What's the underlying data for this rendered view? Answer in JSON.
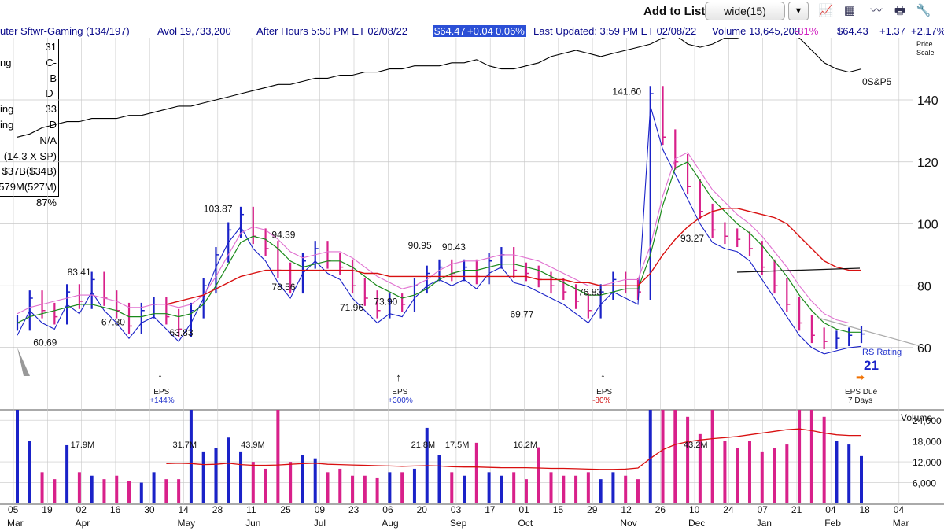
{
  "toolbar": {
    "add_to_list_label": "Add to List:",
    "list_value": "wide(15)",
    "icons": [
      "line-chart-icon",
      "table-icon",
      "alert-icon",
      "print-icon",
      "tools-icon"
    ]
  },
  "infobar": {
    "name": "uter Sftwr-Gaming (134/197)",
    "avol": "Avol 19,733,200",
    "after_hours": "After Hours 5:50 PM ET 02/08/22",
    "ah_price": "$64.47",
    "ah_change": "+0.04",
    "ah_pct": "0.06%",
    "last_updated": "Last Updated: 3:59 PM ET 02/08/22",
    "volume": "Volume 13,645,200",
    "vol_pct": "-31%",
    "price": "$64.43",
    "change": "+1.37",
    "change_pct": "+2.17%"
  },
  "stats": [
    {
      "label": "",
      "value": "31"
    },
    {
      "label": "ng",
      "value": "C-"
    },
    {
      "label": "",
      "value": "B"
    },
    {
      "label": "",
      "value": "D-"
    },
    {
      "label": "ing",
      "value": "33"
    },
    {
      "label": "ing",
      "value": "D"
    },
    {
      "label": "",
      "value": "N/A"
    },
    {
      "label": "",
      "value": "(14.3 X SP)"
    },
    {
      "label": "",
      "value": "$37B($34B)"
    },
    {
      "label": "",
      "value": "579M(527M)"
    },
    {
      "label": "",
      "value": "87%"
    }
  ],
  "chart_data": {
    "type": "line",
    "price_axis": {
      "label": "Price Scale",
      "ticks": [
        60,
        80,
        100,
        120,
        140
      ],
      "range": [
        50,
        160
      ]
    },
    "volume_axis": {
      "label": "Volume",
      "ticks": [
        "6,000",
        "12,000",
        "18,000",
        "24,000"
      ],
      "range": [
        0,
        27000
      ]
    },
    "weeks": [
      "Mar 05",
      "Mar 19",
      "Apr 02",
      "Apr 16",
      "Apr 30",
      "May 14",
      "May 28",
      "Jun 11",
      "Jun 25",
      "Jul 09",
      "Jul 23",
      "Aug 06",
      "Aug 20",
      "Sep 03",
      "Sep 17",
      "Oct 01",
      "Oct 15",
      "Oct 29",
      "Nov 12",
      "Nov 26",
      "Dec 10",
      "Dec 24",
      "Jan 07",
      "Jan 21",
      "Feb 04",
      "Feb 18",
      "Mar 04"
    ],
    "date_labels": [
      {
        "day": "05",
        "month": "Mar"
      },
      {
        "day": "19",
        "month": ""
      },
      {
        "day": "02",
        "month": "Apr"
      },
      {
        "day": "16",
        "month": ""
      },
      {
        "day": "30",
        "month": ""
      },
      {
        "day": "14",
        "month": "May"
      },
      {
        "day": "28",
        "month": ""
      },
      {
        "day": "11",
        "month": "Jun"
      },
      {
        "day": "25",
        "month": ""
      },
      {
        "day": "09",
        "month": "Jul"
      },
      {
        "day": "23",
        "month": ""
      },
      {
        "day": "06",
        "month": "Aug"
      },
      {
        "day": "20",
        "month": ""
      },
      {
        "day": "03",
        "month": "Sep"
      },
      {
        "day": "17",
        "month": ""
      },
      {
        "day": "01",
        "month": "Oct"
      },
      {
        "day": "15",
        "month": ""
      },
      {
        "day": "29",
        "month": ""
      },
      {
        "day": "12",
        "month": "Nov"
      },
      {
        "day": "26",
        "month": ""
      },
      {
        "day": "10",
        "month": "Dec"
      },
      {
        "day": "24",
        "month": ""
      },
      {
        "day": "07",
        "month": "Jan"
      },
      {
        "day": "21",
        "month": ""
      },
      {
        "day": "04",
        "month": "Feb"
      },
      {
        "day": "18",
        "month": ""
      },
      {
        "day": "04",
        "month": "Mar"
      }
    ],
    "price_close": [
      68,
      76,
      72,
      70,
      78,
      75,
      82,
      76,
      72,
      67,
      72,
      74,
      70,
      66,
      72,
      80,
      90,
      98,
      103,
      96,
      92,
      85,
      80,
      88,
      92,
      88,
      86,
      80,
      76,
      72,
      75,
      74,
      80,
      84,
      86,
      84,
      86,
      83,
      88,
      90,
      85,
      84,
      82,
      80,
      78,
      75,
      72,
      78,
      82,
      80,
      78,
      142,
      128,
      120,
      112,
      104,
      98,
      96,
      95,
      92,
      86,
      80,
      74,
      68,
      64,
      62,
      63,
      64,
      64.43
    ],
    "sma50": [
      null,
      null,
      null,
      null,
      null,
      null,
      null,
      null,
      null,
      null,
      null,
      null,
      74,
      75,
      76,
      77,
      79,
      81,
      83,
      84,
      85,
      85,
      85,
      85,
      85,
      85,
      85,
      85,
      84,
      84,
      83,
      83,
      83,
      83,
      83,
      83,
      83,
      83,
      83,
      83,
      83,
      83,
      82,
      82,
      82,
      81,
      81,
      80,
      80,
      80,
      80,
      84,
      90,
      95,
      99,
      102,
      104,
      105,
      105,
      104,
      103,
      102,
      100,
      96,
      92,
      88,
      86,
      85,
      85
    ],
    "sma10": [
      68,
      70,
      71,
      72,
      73,
      74,
      74,
      73,
      72,
      70,
      70,
      71,
      71,
      70,
      71,
      74,
      80,
      87,
      94,
      96,
      95,
      92,
      88,
      86,
      87,
      88,
      88,
      86,
      83,
      80,
      78,
      76,
      77,
      79,
      82,
      84,
      85,
      85,
      86,
      87,
      87,
      86,
      85,
      83,
      81,
      79,
      77,
      77,
      78,
      79,
      79,
      90,
      106,
      118,
      120,
      114,
      108,
      104,
      100,
      97,
      93,
      88,
      83,
      77,
      72,
      68,
      66,
      65,
      65
    ],
    "sp500_rel": [
      128,
      129,
      131,
      132,
      133,
      133,
      134,
      134,
      134,
      135,
      135,
      136,
      137,
      138,
      138,
      139,
      140,
      141,
      142,
      143,
      144,
      145,
      145,
      146,
      147,
      147,
      148,
      148,
      149,
      149,
      150,
      150,
      151,
      151,
      151,
      152,
      152,
      153,
      151,
      150,
      150,
      151,
      152,
      154,
      155,
      156,
      155,
      154,
      155,
      156,
      157,
      158,
      160,
      161,
      158,
      157,
      158,
      160,
      160,
      161,
      162,
      163,
      162,
      160,
      156,
      152,
      150,
      149,
      150
    ],
    "ma_volume": [
      null,
      null,
      null,
      null,
      null,
      null,
      null,
      null,
      null,
      null,
      null,
      null,
      11500,
      11600,
      11500,
      11200,
      11300,
      11600,
      11200,
      11000,
      11000,
      11100,
      11300,
      11500,
      11600,
      11300,
      11200,
      11100,
      11000,
      10900,
      10800,
      10700,
      10800,
      10900,
      10800,
      10600,
      10500,
      10500,
      10400,
      10300,
      10300,
      10300,
      10200,
      10100,
      10100,
      10000,
      9900,
      9800,
      9800,
      9900,
      10200,
      13000,
      15500,
      17000,
      17800,
      18300,
      18700,
      19000,
      19300,
      19800,
      20300,
      20800,
      21300,
      21500,
      21000,
      20300,
      19800,
      19600,
      19600
    ],
    "volume": [
      27000,
      18000,
      9000,
      7000,
      16800,
      9000,
      8000,
      7000,
      8000,
      6500,
      6000,
      9000,
      7000,
      7000,
      31700,
      15000,
      16000,
      19000,
      15000,
      12000,
      10000,
      43900,
      12000,
      14000,
      13000,
      9000,
      10000,
      8000,
      8000,
      7500,
      9000,
      9000,
      10000,
      21800,
      14000,
      9000,
      8000,
      17500,
      9000,
      8000,
      9000,
      7000,
      16200,
      9000,
      8000,
      8000,
      9000,
      7000,
      9000,
      8000,
      7000,
      27000,
      27000,
      27000,
      25000,
      20000,
      43200,
      18000,
      16000,
      18000,
      15000,
      16000,
      17000,
      27000,
      27000,
      25000,
      18000,
      17000,
      13645
    ],
    "price_labels": [
      {
        "text": "83.41",
        "week": "Apr 02",
        "value": 83.41
      },
      {
        "text": "60.69",
        "week": "Mar 19",
        "value": 60.69
      },
      {
        "text": "67.30",
        "week": "Apr 16",
        "value": 67.3
      },
      {
        "text": "63.83",
        "week": "May 14",
        "value": 63.83
      },
      {
        "text": "103.87",
        "week": "May 28",
        "value": 103.87
      },
      {
        "text": "94.39",
        "week": "Jun 25",
        "value": 94.39
      },
      {
        "text": "78.56",
        "week": "Jun 25",
        "value": 78.56
      },
      {
        "text": "71.96",
        "week": "Jul 23",
        "value": 71.96
      },
      {
        "text": "73.90",
        "week": "Aug 06",
        "value": 73.9
      },
      {
        "text": "90.95",
        "week": "Aug 20",
        "value": 90.95
      },
      {
        "text": "90.43",
        "week": "Sep 03",
        "value": 90.43
      },
      {
        "text": "69.77",
        "week": "Oct 01",
        "value": 69.77
      },
      {
        "text": "76.83",
        "week": "Oct 29",
        "value": 76.83
      },
      {
        "text": "141.60",
        "week": "Nov 12",
        "value": 141.6
      },
      {
        "text": "93.27",
        "week": "Dec 10",
        "value": 93.27
      }
    ],
    "volume_labels": [
      {
        "text": "17.9M",
        "week": "Apr 02"
      },
      {
        "text": "31.7M",
        "week": "May 14"
      },
      {
        "text": "43.9M",
        "week": "Jun 11"
      },
      {
        "text": "21.8M",
        "week": "Aug 20"
      },
      {
        "text": "17.5M",
        "week": "Sep 03"
      },
      {
        "text": "16.2M",
        "week": "Oct 01"
      },
      {
        "text": "43.2M",
        "week": "Dec 10"
      }
    ],
    "eps_markers": [
      {
        "label": "EPS",
        "change": "+144%",
        "week": "Apr 30",
        "color": "#2233cc"
      },
      {
        "label": "EPS",
        "change": "+300%",
        "week": "Aug 06",
        "color": "#2233cc"
      },
      {
        "label": "EPS",
        "change": "-80%",
        "week": "Oct 29",
        "color": "#d01010"
      }
    ],
    "eps_due": {
      "line1": "EPS Due",
      "line2": "7 Days"
    },
    "sp500_label": "0S&P5",
    "rs_rating": {
      "label": "RS Rating",
      "value": "21"
    },
    "colors": {
      "up": "#1a22c8",
      "down": "#d8208a",
      "sma50": "#d81010",
      "sma10": "#1a8a1a",
      "sma21": "#e070d0",
      "sp500": "#000000",
      "grid": "#c8c8c8"
    }
  }
}
